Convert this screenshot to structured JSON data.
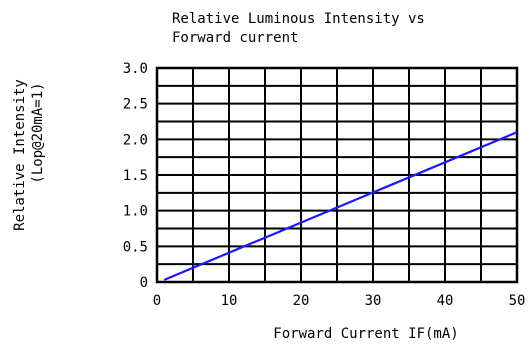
{
  "chart_data": {
    "type": "line",
    "title_lines": [
      "Relative Luminous Intensity vs",
      "Forward current"
    ],
    "xlabel": "Forward Current IF(mA)",
    "ylabel_lines": [
      "Relative Intensity",
      "(Lop@20mA=1)"
    ],
    "xlim": [
      0,
      50
    ],
    "ylim": [
      0,
      3.0
    ],
    "x_ticks": [
      "0",
      "10",
      "20",
      "30",
      "40",
      "50"
    ],
    "y_ticks": [
      "0",
      "0.5",
      "1.0",
      "1.5",
      "2.0",
      "2.5",
      "3.0"
    ],
    "x_grid_step": 5,
    "y_grid_step": 0.25,
    "grid": true,
    "series": [
      {
        "x": [
          1,
          50
        ],
        "y": [
          0.03,
          2.1
        ]
      }
    ],
    "colors": {
      "series": "#1a1aff",
      "grid": "#000000"
    }
  }
}
